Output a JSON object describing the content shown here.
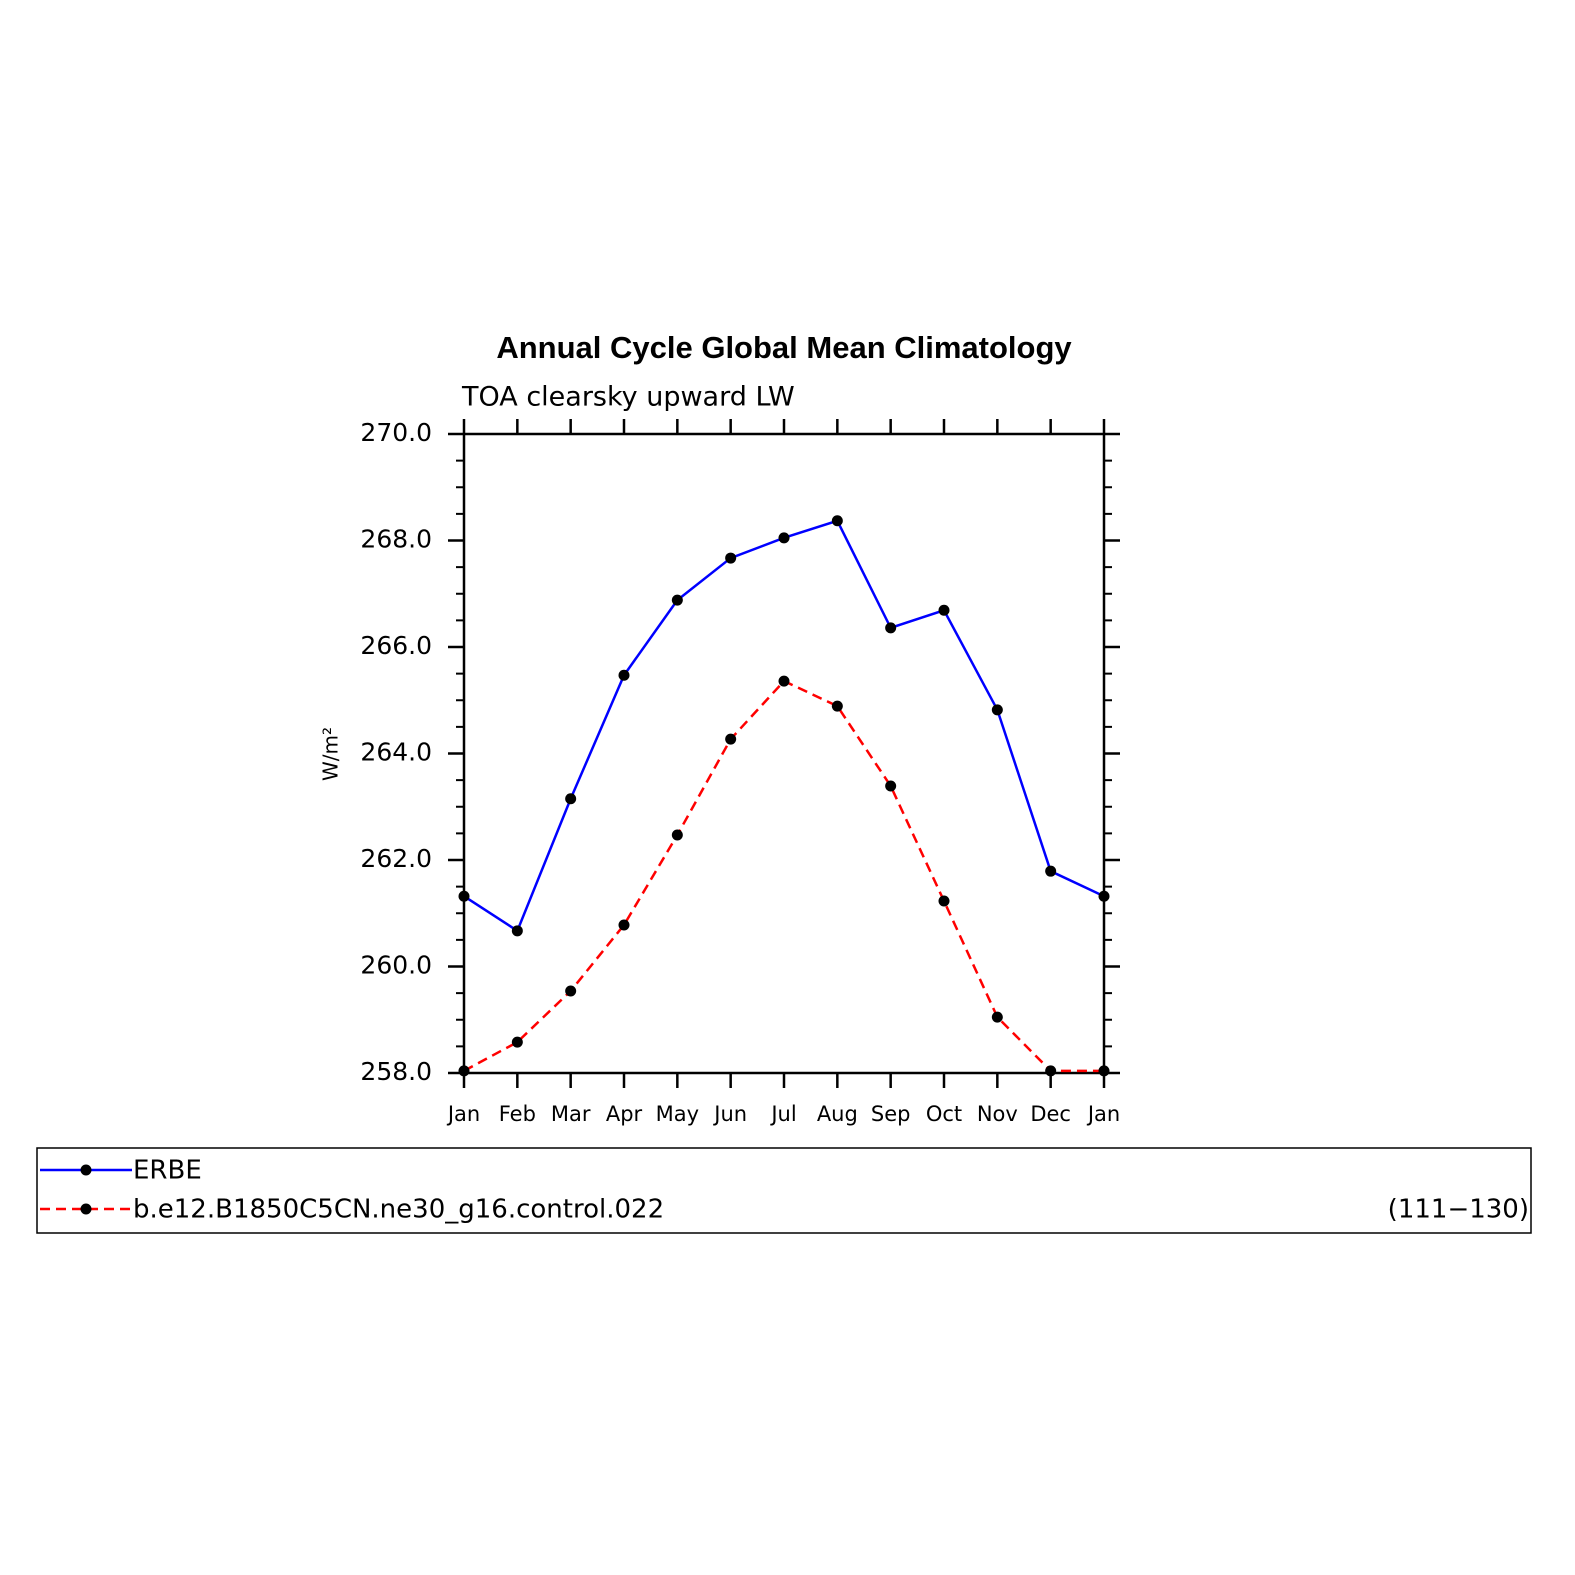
{
  "chart_data": {
    "type": "line",
    "title": "Annual Cycle Global Mean Climatology",
    "subtitle": "TOA clearsky upward LW",
    "y_label": "W/m²",
    "categories": [
      "Jan",
      "Feb",
      "Mar",
      "Apr",
      "May",
      "Jun",
      "Jul",
      "Aug",
      "Sep",
      "Oct",
      "Nov",
      "Dec",
      "Jan"
    ],
    "series": [
      {
        "name": "ERBE",
        "color": "#0000ff",
        "dash": false,
        "values": [
          261.32,
          260.67,
          263.15,
          265.47,
          266.88,
          267.67,
          268.05,
          268.37,
          266.36,
          266.69,
          264.82,
          261.79,
          261.32
        ]
      },
      {
        "name": "b.e12.B1850C5CN.ne30_g16.control.022",
        "color": "#ff0000",
        "dash": true,
        "values": [
          258.04,
          258.58,
          259.54,
          260.78,
          262.47,
          264.27,
          265.36,
          264.89,
          263.39,
          261.23,
          259.05,
          258.04,
          258.04
        ]
      }
    ],
    "legend_note": "(111−130)",
    "ylim": [
      258,
      270
    ],
    "yticks": [
      {
        "value": 258,
        "label": "258.0"
      },
      {
        "value": 260,
        "label": "260.0"
      },
      {
        "value": 262,
        "label": "262.0"
      },
      {
        "value": 264,
        "label": "264.0"
      },
      {
        "value": 266,
        "label": "266.0"
      },
      {
        "value": 268,
        "label": "268.0"
      },
      {
        "value": 270,
        "label": "270.0"
      }
    ],
    "yminorticks": [
      258.5,
      259,
      259.5,
      260.5,
      261,
      261.5,
      262.5,
      263,
      263.5,
      264.5,
      265,
      265.5,
      266.5,
      267,
      267.5,
      268.5,
      269,
      269.5
    ]
  }
}
